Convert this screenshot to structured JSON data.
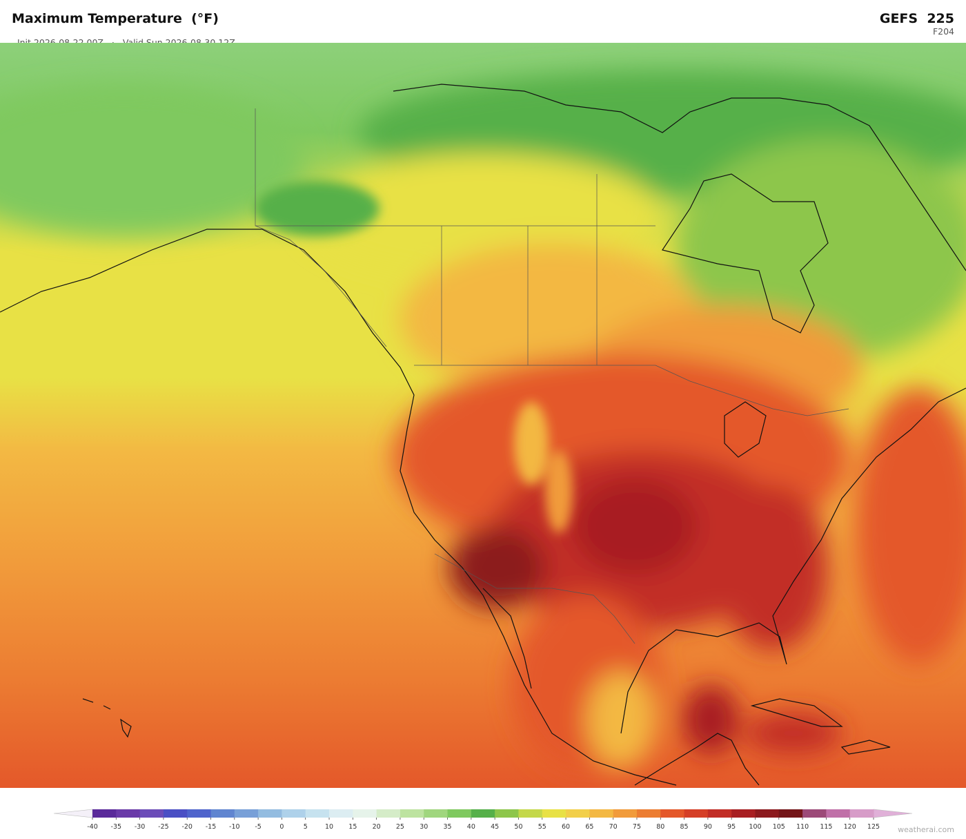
{
  "header": {
    "title": "Maximum Temperature  (°F)",
    "init": "Init 2026-08-22 00Z",
    "separator": "·",
    "valid": "Valid Sun 2026-08-30 12Z",
    "model": "GEFS  225",
    "forecast_hour": "F204"
  },
  "colorbar": {
    "ticks": [
      -40,
      -35,
      -30,
      -25,
      -20,
      -15,
      -10,
      -5,
      0,
      5,
      10,
      15,
      20,
      25,
      30,
      35,
      40,
      45,
      50,
      55,
      60,
      65,
      70,
      75,
      80,
      85,
      90,
      95,
      100,
      105,
      110,
      115,
      120,
      125
    ],
    "colors": [
      "#5a2a9a",
      "#6a3aa8",
      "#6b4cb8",
      "#4a4fc4",
      "#4f64cc",
      "#6085d0",
      "#78a0d8",
      "#93bce0",
      "#aed1ea",
      "#c6e2ef",
      "#dcedf2",
      "#e6f3ea",
      "#d5ecc8",
      "#bde3a0",
      "#a0d67e",
      "#7fc95f",
      "#56b04a",
      "#8dc64b",
      "#c4d84a",
      "#e8e145",
      "#f2cf4a",
      "#f3b843",
      "#f19b3b",
      "#ec7d32",
      "#e4582a",
      "#d53f27",
      "#c22d26",
      "#a81f22",
      "#8c1a1e",
      "#741619",
      "#9c4a78",
      "#c070a8",
      "#d79cc8"
    ],
    "under_color": "#f4f0f8",
    "over_color": "#e0b0d8"
  },
  "footer": {
    "credit": "weatherai.com"
  }
}
